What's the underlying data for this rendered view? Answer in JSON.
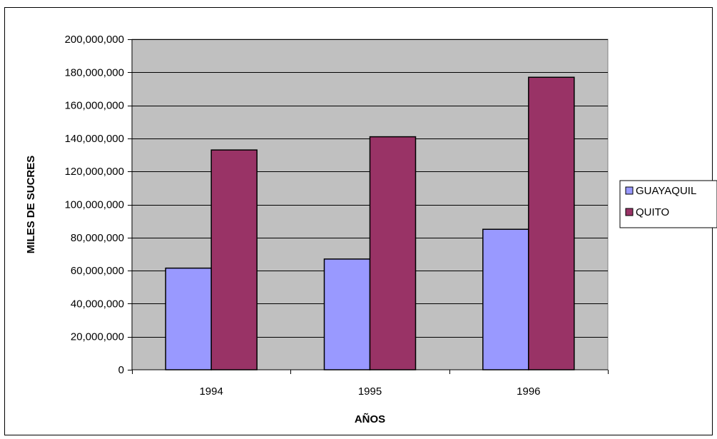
{
  "chart_data": {
    "type": "bar",
    "title": "",
    "xlabel": "AÑOS",
    "ylabel": "MILES DE SUCRES",
    "categories": [
      "1994",
      "1995",
      "1996"
    ],
    "series": [
      {
        "name": "GUAYAQUIL",
        "values": [
          61500000,
          67000000,
          85000000
        ],
        "color": "#9999ff"
      },
      {
        "name": "QUITO",
        "values": [
          133000000,
          141000000,
          177000000
        ],
        "color": "#993366"
      }
    ],
    "ylim": [
      0,
      200000000
    ],
    "yticks": [
      0,
      20000000,
      40000000,
      60000000,
      80000000,
      100000000,
      120000000,
      140000000,
      160000000,
      180000000,
      200000000
    ],
    "ytick_labels": [
      "0",
      "20,000,000",
      "40,000,000",
      "60,000,000",
      "80,000,000",
      "100,000,000",
      "120,000,000",
      "140,000,000",
      "160,000,000",
      "180,000,000",
      "200,000,000"
    ],
    "grid": true,
    "legend_position": "right",
    "plot_background": "#c0c0c0"
  }
}
